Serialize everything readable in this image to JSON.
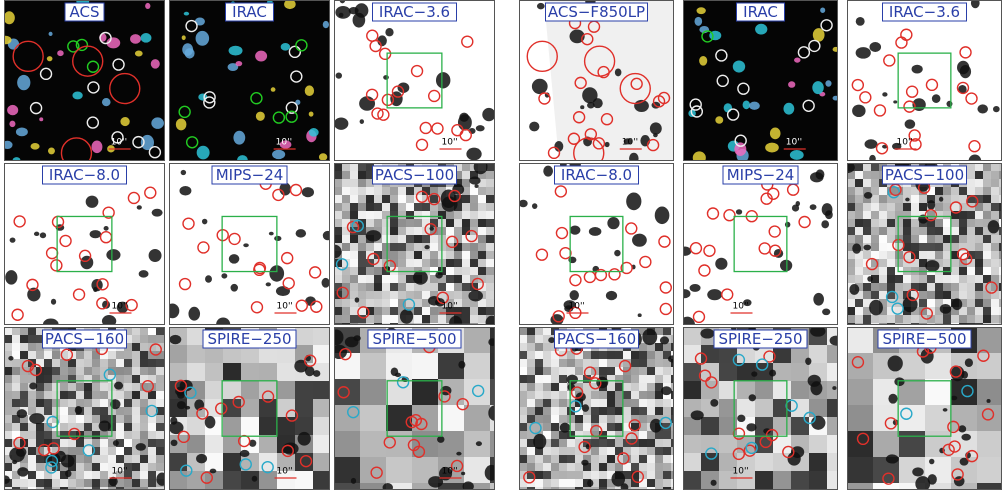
{
  "left": {
    "panels": [
      {
        "label": "ACS",
        "scale": "10''"
      },
      {
        "label": "IRAC",
        "scale": "10''"
      },
      {
        "label": "IRAC−3.6",
        "scale": "10''"
      },
      {
        "label": "IRAC−8.0",
        "scale": "10''"
      },
      {
        "label": "MIPS−24",
        "scale": "10''"
      },
      {
        "label": "PACS−100",
        "scale": "10''"
      },
      {
        "label": "PACS−160",
        "scale": "10''"
      },
      {
        "label": "SPIRE−250",
        "scale": "10''"
      },
      {
        "label": "SPIRE−500",
        "scale": "10''"
      }
    ]
  },
  "right": {
    "panels": [
      {
        "label": "ACS−F850LP",
        "scale": "10''"
      },
      {
        "label": "IRAC",
        "scale": "10''"
      },
      {
        "label": "IRAC−3.6",
        "scale": "10''"
      },
      {
        "label": "IRAC−8.0",
        "scale": "10''"
      },
      {
        "label": "MIPS−24",
        "scale": "10''"
      },
      {
        "label": "PACS−100"
      },
      {
        "label": "PACS−160"
      },
      {
        "label": "SPIRE−250",
        "scale": "10''"
      },
      {
        "label": "SPIRE−500"
      }
    ]
  }
}
